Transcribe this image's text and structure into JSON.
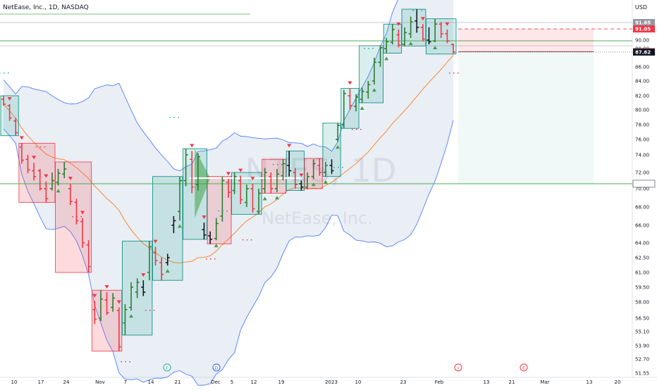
{
  "header": {
    "symbol_line": "NetEase, Inc., 1D, NASDAQ",
    "currency": "USD"
  },
  "watermark": {
    "ticker": "NTES, 1D",
    "name": "NetEase, Inc."
  },
  "chart_data": {
    "type": "candlestick",
    "ylim": [
      51.55,
      94.5
    ],
    "y_ticks": [
      {
        "label": "91.65",
        "value": 91.65
      },
      {
        "label": "90.00",
        "value": 90.0
      },
      {
        "label": "88.00",
        "value": 88.0
      },
      {
        "label": "86.00",
        "value": 86.0
      },
      {
        "label": "84.00",
        "value": 84.0
      },
      {
        "label": "82.00",
        "value": 82.0
      },
      {
        "label": "80.00",
        "value": 80.0
      },
      {
        "label": "78.00",
        "value": 78.0
      },
      {
        "label": "76.00",
        "value": 76.0
      },
      {
        "label": "74.00",
        "value": 74.0
      },
      {
        "label": "72.00",
        "value": 72.0
      },
      {
        "label": "70.00",
        "value": 70.0
      },
      {
        "label": "68.00",
        "value": 68.0
      },
      {
        "label": "66.00",
        "value": 66.0
      },
      {
        "label": "64.00",
        "value": 64.0
      },
      {
        "label": "62.50",
        "value": 62.5
      },
      {
        "label": "61.00",
        "value": 61.0
      },
      {
        "label": "59.50",
        "value": 59.5
      },
      {
        "label": "58.00",
        "value": 58.0
      },
      {
        "label": "56.50",
        "value": 56.5
      },
      {
        "label": "55.10",
        "value": 55.1
      },
      {
        "label": "53.90",
        "value": 53.9
      },
      {
        "label": "52.70",
        "value": 52.7
      },
      {
        "label": "51.55",
        "value": 51.55
      }
    ],
    "x_ticks": [
      "10",
      "17",
      "24",
      "Nov",
      "7",
      "14",
      "21",
      "Dec",
      "5",
      "12",
      "19",
      "2023",
      "10",
      "23",
      "Feb",
      "13",
      "21",
      "Mar",
      "13",
      "20"
    ],
    "price_labels": [
      {
        "label": "91.65",
        "value": 91.65,
        "color": "#9598a1"
      },
      {
        "label": "91.05",
        "value": 91.05,
        "color": "#f23645"
      },
      {
        "label": "87.65",
        "value": 87.65,
        "color": "#f23645"
      },
      {
        "label": "87.62",
        "value": 87.62,
        "color": "#131722"
      },
      {
        "label": "70.61",
        "value": 70.61,
        "color": "#ffffff"
      }
    ],
    "candles": [
      {
        "o": 81.5,
        "h": 82.0,
        "l": 80.6,
        "c": 80.8
      },
      {
        "o": 80.6,
        "h": 80.8,
        "l": 78.5,
        "c": 78.9
      },
      {
        "o": 78.5,
        "h": 78.9,
        "l": 76.5,
        "c": 76.9
      },
      {
        "o": 75.0,
        "h": 75.5,
        "l": 73.0,
        "c": 73.4
      },
      {
        "o": 73.5,
        "h": 74.0,
        "l": 71.9,
        "c": 72.3
      },
      {
        "o": 72.2,
        "h": 73.1,
        "l": 71.0,
        "c": 71.5
      },
      {
        "o": 72.2,
        "h": 72.4,
        "l": 69.8,
        "c": 70.0
      },
      {
        "o": 70.0,
        "h": 70.9,
        "l": 68.5,
        "c": 68.9
      },
      {
        "o": 70.0,
        "h": 72.0,
        "l": 69.8,
        "c": 71.0
      },
      {
        "o": 70.8,
        "h": 72.4,
        "l": 70.4,
        "c": 71.9
      },
      {
        "o": 71.8,
        "h": 73.2,
        "l": 71.3,
        "c": 72.4
      },
      {
        "o": 70.0,
        "h": 70.6,
        "l": 68.2,
        "c": 68.6
      },
      {
        "o": 68.5,
        "h": 68.9,
        "l": 66.1,
        "c": 66.5
      },
      {
        "o": 66.4,
        "h": 66.8,
        "l": 63.5,
        "c": 64.0
      },
      {
        "o": 63.8,
        "h": 64.3,
        "l": 61.0,
        "c": 61.6
      },
      {
        "o": 57.3,
        "h": 58.1,
        "l": 55.9,
        "c": 56.4
      },
      {
        "o": 56.5,
        "h": 59.2,
        "l": 56.2,
        "c": 58.3
      },
      {
        "o": 58.2,
        "h": 59.0,
        "l": 56.8,
        "c": 57.0
      },
      {
        "o": 57.5,
        "h": 58.9,
        "l": 57.1,
        "c": 58.4
      },
      {
        "o": 57.2,
        "h": 57.5,
        "l": 53.4,
        "c": 53.8
      },
      {
        "o": 56.0,
        "h": 57.8,
        "l": 54.8,
        "c": 57.3
      },
      {
        "o": 57.5,
        "h": 60.0,
        "l": 57.2,
        "c": 59.5
      },
      {
        "o": 59.0,
        "h": 60.4,
        "l": 58.4,
        "c": 60.0
      },
      {
        "o": 59.5,
        "h": 60.2,
        "l": 58.6,
        "c": 59.0
      },
      {
        "o": 61.0,
        "h": 64.2,
        "l": 60.2,
        "c": 63.6
      },
      {
        "o": 63.0,
        "h": 63.6,
        "l": 61.7,
        "c": 62.2
      },
      {
        "o": 62.0,
        "h": 62.5,
        "l": 60.2,
        "c": 60.8
      },
      {
        "o": 62.0,
        "h": 62.9,
        "l": 61.7,
        "c": 62.5
      },
      {
        "o": 66.0,
        "h": 67.0,
        "l": 65.1,
        "c": 66.5
      },
      {
        "o": 67.5,
        "h": 71.5,
        "l": 66.5,
        "c": 71.0
      },
      {
        "o": 71.0,
        "h": 74.8,
        "l": 70.3,
        "c": 74.0
      },
      {
        "o": 73.5,
        "h": 74.5,
        "l": 69.5,
        "c": 70.2
      },
      {
        "o": 70.5,
        "h": 74.2,
        "l": 69.8,
        "c": 73.8
      },
      {
        "o": 65.5,
        "h": 66.3,
        "l": 64.4,
        "c": 64.9
      },
      {
        "o": 64.8,
        "h": 65.3,
        "l": 63.9,
        "c": 64.4
      },
      {
        "o": 64.5,
        "h": 66.8,
        "l": 64.3,
        "c": 66.2
      },
      {
        "o": 67.0,
        "h": 71.5,
        "l": 66.4,
        "c": 71.0
      },
      {
        "o": 70.8,
        "h": 71.2,
        "l": 69.0,
        "c": 69.6
      },
      {
        "o": 69.8,
        "h": 72.0,
        "l": 69.4,
        "c": 71.5
      },
      {
        "o": 71.0,
        "h": 71.6,
        "l": 68.3,
        "c": 68.8
      },
      {
        "o": 68.5,
        "h": 70.5,
        "l": 68.0,
        "c": 70.0
      },
      {
        "o": 70.0,
        "h": 70.6,
        "l": 67.4,
        "c": 67.8
      },
      {
        "o": 67.5,
        "h": 70.0,
        "l": 67.2,
        "c": 69.5
      },
      {
        "o": 70.0,
        "h": 72.5,
        "l": 69.5,
        "c": 72.0
      },
      {
        "o": 71.5,
        "h": 72.0,
        "l": 69.5,
        "c": 70.0
      },
      {
        "o": 70.0,
        "h": 72.4,
        "l": 69.6,
        "c": 71.8
      },
      {
        "o": 71.6,
        "h": 73.5,
        "l": 71.0,
        "c": 73.0
      },
      {
        "o": 72.8,
        "h": 74.5,
        "l": 71.5,
        "c": 72.2
      },
      {
        "o": 72.0,
        "h": 72.5,
        "l": 70.0,
        "c": 70.5
      },
      {
        "o": 70.6,
        "h": 71.0,
        "l": 69.8,
        "c": 70.2
      },
      {
        "o": 70.2,
        "h": 72.0,
        "l": 70.0,
        "c": 71.5
      },
      {
        "o": 71.5,
        "h": 73.5,
        "l": 71.2,
        "c": 73.0
      },
      {
        "o": 72.8,
        "h": 73.6,
        "l": 71.6,
        "c": 72.0
      },
      {
        "o": 72.0,
        "h": 73.2,
        "l": 71.5,
        "c": 72.8
      },
      {
        "o": 72.8,
        "h": 73.5,
        "l": 71.8,
        "c": 72.2
      },
      {
        "o": 76.0,
        "h": 78.2,
        "l": 75.7,
        "c": 77.9
      },
      {
        "o": 78.0,
        "h": 82.8,
        "l": 77.5,
        "c": 82.3
      },
      {
        "o": 82.0,
        "h": 83.0,
        "l": 80.0,
        "c": 80.6
      },
      {
        "o": 80.5,
        "h": 82.2,
        "l": 79.8,
        "c": 81.8
      },
      {
        "o": 81.5,
        "h": 83.1,
        "l": 81.0,
        "c": 82.6
      },
      {
        "o": 82.5,
        "h": 84.0,
        "l": 81.6,
        "c": 83.5
      },
      {
        "o": 84.0,
        "h": 87.0,
        "l": 83.5,
        "c": 86.5
      },
      {
        "o": 86.5,
        "h": 88.7,
        "l": 86.0,
        "c": 88.2
      },
      {
        "o": 88.0,
        "h": 90.2,
        "l": 87.5,
        "c": 89.6
      },
      {
        "o": 89.5,
        "h": 91.5,
        "l": 89.0,
        "c": 91.0
      },
      {
        "o": 90.5,
        "h": 91.0,
        "l": 88.3,
        "c": 88.8
      },
      {
        "o": 89.0,
        "h": 91.2,
        "l": 88.6,
        "c": 90.7
      },
      {
        "o": 90.6,
        "h": 92.2,
        "l": 90.2,
        "c": 91.7
      },
      {
        "o": 91.8,
        "h": 92.9,
        "l": 90.7,
        "c": 91.2
      },
      {
        "o": 91.2,
        "h": 91.5,
        "l": 89.7,
        "c": 90.1
      },
      {
        "o": 90.0,
        "h": 91.2,
        "l": 89.0,
        "c": 89.6
      },
      {
        "o": 89.8,
        "h": 92.0,
        "l": 89.5,
        "c": 91.5
      },
      {
        "o": 91.5,
        "h": 91.7,
        "l": 90.2,
        "c": 90.6
      },
      {
        "o": 90.6,
        "h": 91.0,
        "l": 89.3,
        "c": 89.8
      },
      {
        "o": 89.0,
        "h": 89.2,
        "l": 87.4,
        "c": 87.62
      }
    ]
  }
}
